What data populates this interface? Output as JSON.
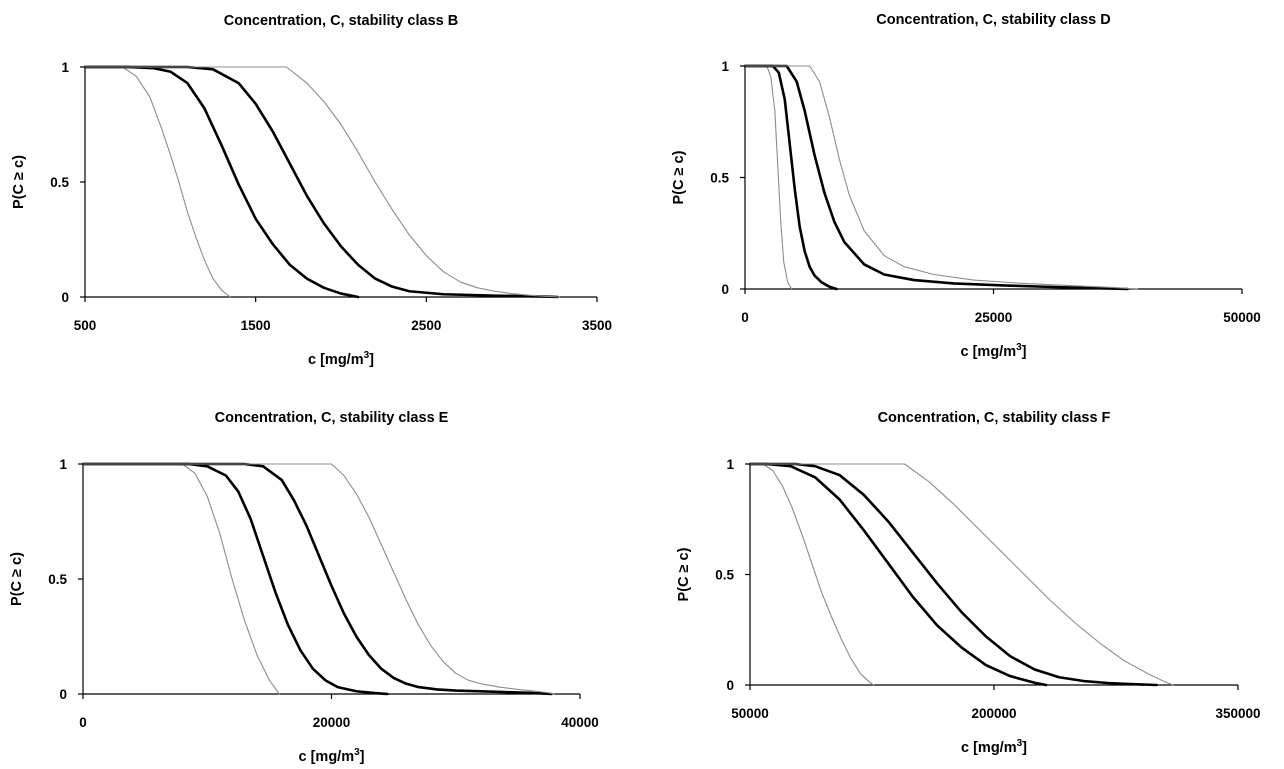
{
  "chart_data": [
    {
      "type": "line",
      "title": "Concentration, C, stability class B",
      "xlabel": "c [mg/m",
      "xlabel_sup": "3",
      "xlabel_end": "]",
      "ylabel": "P(C ≥ c)",
      "xlim": [
        500,
        3500
      ],
      "ylim": [
        0,
        1
      ],
      "xticks": [
        "500",
        "1500",
        "2500",
        "3500"
      ],
      "yticks": [
        "0",
        "0.5",
        "1"
      ],
      "colors": {
        "bounds": "#8c8c8c",
        "central": "#000000"
      },
      "series": [
        {
          "style": "bound",
          "points": [
            [
              500,
              1
            ],
            [
              720,
              1
            ],
            [
              800,
              0.96
            ],
            [
              880,
              0.87
            ],
            [
              950,
              0.73
            ],
            [
              1000,
              0.62
            ],
            [
              1050,
              0.5
            ],
            [
              1100,
              0.37
            ],
            [
              1150,
              0.26
            ],
            [
              1200,
              0.16
            ],
            [
              1250,
              0.08
            ],
            [
              1300,
              0.03
            ],
            [
              1350,
              0
            ]
          ]
        },
        {
          "style": "central",
          "points": [
            [
              500,
              1
            ],
            [
              750,
              1
            ],
            [
              900,
              0.995
            ],
            [
              1000,
              0.98
            ],
            [
              1100,
              0.93
            ],
            [
              1200,
              0.82
            ],
            [
              1300,
              0.66
            ],
            [
              1400,
              0.49
            ],
            [
              1500,
              0.34
            ],
            [
              1600,
              0.23
            ],
            [
              1700,
              0.14
            ],
            [
              1800,
              0.08
            ],
            [
              1900,
              0.04
            ],
            [
              2000,
              0.015
            ],
            [
              2100,
              0
            ]
          ]
        },
        {
          "style": "central",
          "points": [
            [
              500,
              1
            ],
            [
              1100,
              1
            ],
            [
              1250,
              0.99
            ],
            [
              1400,
              0.93
            ],
            [
              1500,
              0.84
            ],
            [
              1600,
              0.72
            ],
            [
              1700,
              0.58
            ],
            [
              1800,
              0.44
            ],
            [
              1900,
              0.32
            ],
            [
              2000,
              0.22
            ],
            [
              2100,
              0.14
            ],
            [
              2200,
              0.08
            ],
            [
              2300,
              0.045
            ],
            [
              2400,
              0.025
            ],
            [
              2600,
              0.012
            ],
            [
              2900,
              0.006
            ],
            [
              3200,
              0.002
            ],
            [
              3270,
              0
            ]
          ]
        },
        {
          "style": "bound",
          "points": [
            [
              500,
              1
            ],
            [
              1680,
              1
            ],
            [
              1800,
              0.93
            ],
            [
              1900,
              0.85
            ],
            [
              2000,
              0.75
            ],
            [
              2100,
              0.63
            ],
            [
              2200,
              0.5
            ],
            [
              2300,
              0.38
            ],
            [
              2400,
              0.27
            ],
            [
              2500,
              0.18
            ],
            [
              2600,
              0.11
            ],
            [
              2700,
              0.065
            ],
            [
              2800,
              0.04
            ],
            [
              2900,
              0.025
            ],
            [
              3000,
              0.015
            ],
            [
              3100,
              0.008
            ],
            [
              3200,
              0.003
            ],
            [
              3280,
              0
            ]
          ]
        }
      ]
    },
    {
      "type": "line",
      "title": "Concentration, C, stability class D",
      "xlabel": "c [mg/m",
      "xlabel_sup": "3",
      "xlabel_end": "]",
      "ylabel": "P(C ≥ c)",
      "xlim": [
        0,
        50000
      ],
      "ylim": [
        0,
        1
      ],
      "xticks": [
        "0",
        "25000",
        "50000"
      ],
      "yticks": [
        "0",
        "0.5",
        "1"
      ],
      "colors": {
        "bounds": "#8c8c8c",
        "central": "#000000"
      },
      "series": [
        {
          "style": "bound",
          "points": [
            [
              0,
              1
            ],
            [
              2200,
              1
            ],
            [
              2600,
              0.95
            ],
            [
              3000,
              0.8
            ],
            [
              3300,
              0.55
            ],
            [
              3600,
              0.3
            ],
            [
              3900,
              0.12
            ],
            [
              4300,
              0.03
            ],
            [
              4700,
              0
            ]
          ]
        },
        {
          "style": "central",
          "points": [
            [
              0,
              1
            ],
            [
              2800,
              1
            ],
            [
              3400,
              0.97
            ],
            [
              4000,
              0.85
            ],
            [
              4500,
              0.65
            ],
            [
              5000,
              0.45
            ],
            [
              5500,
              0.28
            ],
            [
              6000,
              0.17
            ],
            [
              6500,
              0.1
            ],
            [
              7000,
              0.06
            ],
            [
              7700,
              0.03
            ],
            [
              8500,
              0.01
            ],
            [
              9200,
              0
            ]
          ]
        },
        {
          "style": "central",
          "points": [
            [
              0,
              1
            ],
            [
              4200,
              1
            ],
            [
              5200,
              0.93
            ],
            [
              6000,
              0.8
            ],
            [
              7000,
              0.6
            ],
            [
              8000,
              0.43
            ],
            [
              9000,
              0.3
            ],
            [
              10000,
              0.21
            ],
            [
              12000,
              0.11
            ],
            [
              14000,
              0.065
            ],
            [
              17000,
              0.04
            ],
            [
              21000,
              0.025
            ],
            [
              26000,
              0.016
            ],
            [
              31000,
              0.009
            ],
            [
              36000,
              0.003
            ],
            [
              38500,
              0
            ]
          ]
        },
        {
          "style": "bound",
          "points": [
            [
              0,
              1
            ],
            [
              6500,
              1
            ],
            [
              7500,
              0.93
            ],
            [
              8500,
              0.77
            ],
            [
              9500,
              0.58
            ],
            [
              10500,
              0.42
            ],
            [
              12000,
              0.26
            ],
            [
              14000,
              0.15
            ],
            [
              16000,
              0.1
            ],
            [
              19000,
              0.065
            ],
            [
              23000,
              0.04
            ],
            [
              28000,
              0.025
            ],
            [
              33000,
              0.015
            ],
            [
              37000,
              0.007
            ],
            [
              39500,
              0
            ]
          ]
        }
      ]
    },
    {
      "type": "line",
      "title": "Concentration, C, stability class E",
      "xlabel": "c [mg/m",
      "xlabel_sup": "3",
      "xlabel_end": "]",
      "ylabel": "P(C ≥ c)",
      "xlim": [
        0,
        40000
      ],
      "ylim": [
        0,
        1
      ],
      "xticks": [
        "0",
        "20000",
        "40000"
      ],
      "yticks": [
        "0",
        "0.5",
        "1"
      ],
      "colors": {
        "bounds": "#8c8c8c",
        "central": "#000000"
      },
      "series": [
        {
          "style": "bound",
          "points": [
            [
              0,
              1
            ],
            [
              8000,
              1
            ],
            [
              9000,
              0.96
            ],
            [
              10000,
              0.86
            ],
            [
              11000,
              0.7
            ],
            [
              12000,
              0.5
            ],
            [
              13000,
              0.32
            ],
            [
              14000,
              0.17
            ],
            [
              15000,
              0.06
            ],
            [
              15800,
              0
            ]
          ]
        },
        {
          "style": "central",
          "points": [
            [
              0,
              1
            ],
            [
              8500,
              1
            ],
            [
              10000,
              0.99
            ],
            [
              11500,
              0.95
            ],
            [
              12500,
              0.88
            ],
            [
              13500,
              0.76
            ],
            [
              14500,
              0.6
            ],
            [
              15500,
              0.44
            ],
            [
              16500,
              0.3
            ],
            [
              17500,
              0.19
            ],
            [
              18500,
              0.11
            ],
            [
              19500,
              0.06
            ],
            [
              20500,
              0.03
            ],
            [
              22000,
              0.012
            ],
            [
              23500,
              0.004
            ],
            [
              24500,
              0
            ]
          ]
        },
        {
          "style": "central",
          "points": [
            [
              0,
              1
            ],
            [
              13000,
              1
            ],
            [
              14500,
              0.99
            ],
            [
              16000,
              0.93
            ],
            [
              17000,
              0.84
            ],
            [
              18000,
              0.73
            ],
            [
              19000,
              0.6
            ],
            [
              20000,
              0.47
            ],
            [
              21000,
              0.35
            ],
            [
              22000,
              0.25
            ],
            [
              23000,
              0.17
            ],
            [
              24000,
              0.11
            ],
            [
              25000,
              0.07
            ],
            [
              26000,
              0.045
            ],
            [
              27000,
              0.03
            ],
            [
              28500,
              0.02
            ],
            [
              30000,
              0.015
            ],
            [
              33000,
              0.01
            ],
            [
              36000,
              0.005
            ],
            [
              37700,
              0
            ]
          ]
        },
        {
          "style": "bound",
          "points": [
            [
              0,
              1
            ],
            [
              20000,
              1
            ],
            [
              21000,
              0.95
            ],
            [
              22000,
              0.87
            ],
            [
              23000,
              0.77
            ],
            [
              24000,
              0.65
            ],
            [
              25000,
              0.53
            ],
            [
              26000,
              0.41
            ],
            [
              27000,
              0.3
            ],
            [
              28000,
              0.21
            ],
            [
              29000,
              0.14
            ],
            [
              30000,
              0.09
            ],
            [
              31000,
              0.06
            ],
            [
              32000,
              0.045
            ],
            [
              33500,
              0.03
            ],
            [
              35000,
              0.02
            ],
            [
              36500,
              0.012
            ],
            [
              37500,
              0.005
            ],
            [
              37900,
              0
            ]
          ]
        }
      ]
    },
    {
      "type": "line",
      "title": "Concentration, C, stability class F",
      "xlabel": "c [mg/m",
      "xlabel_sup": "3",
      "xlabel_end": "]",
      "ylabel": "P(C ≥ c)",
      "xlim": [
        50000,
        350000
      ],
      "ylim": [
        0,
        1
      ],
      "xticks": [
        "50000",
        "200000",
        "350000"
      ],
      "yticks": [
        "0",
        "0.5",
        "1"
      ],
      "colors": {
        "bounds": "#8c8c8c",
        "central": "#000000"
      },
      "series": [
        {
          "style": "bound",
          "points": [
            [
              50000,
              1
            ],
            [
              58000,
              1
            ],
            [
              64000,
              0.97
            ],
            [
              70000,
              0.9
            ],
            [
              76000,
              0.8
            ],
            [
              82000,
              0.68
            ],
            [
              88000,
              0.55
            ],
            [
              94000,
              0.42
            ],
            [
              100000,
              0.31
            ],
            [
              106000,
              0.21
            ],
            [
              112000,
              0.12
            ],
            [
              118000,
              0.05
            ],
            [
              124000,
              0.01
            ],
            [
              126000,
              0
            ]
          ]
        },
        {
          "style": "central",
          "points": [
            [
              50000,
              1
            ],
            [
              60000,
              1
            ],
            [
              75000,
              0.99
            ],
            [
              90000,
              0.94
            ],
            [
              105000,
              0.84
            ],
            [
              120000,
              0.7
            ],
            [
              135000,
              0.55
            ],
            [
              150000,
              0.4
            ],
            [
              165000,
              0.27
            ],
            [
              180000,
              0.17
            ],
            [
              195000,
              0.09
            ],
            [
              210000,
              0.04
            ],
            [
              225000,
              0.01
            ],
            [
              232000,
              0
            ]
          ]
        },
        {
          "style": "central",
          "points": [
            [
              50000,
              1
            ],
            [
              78000,
              1
            ],
            [
              90000,
              0.99
            ],
            [
              105000,
              0.95
            ],
            [
              120000,
              0.86
            ],
            [
              135000,
              0.74
            ],
            [
              150000,
              0.6
            ],
            [
              165000,
              0.46
            ],
            [
              180000,
              0.33
            ],
            [
              195000,
              0.22
            ],
            [
              210000,
              0.13
            ],
            [
              225000,
              0.07
            ],
            [
              240000,
              0.035
            ],
            [
              255000,
              0.018
            ],
            [
              270000,
              0.009
            ],
            [
              285000,
              0.004
            ],
            [
              300000,
              0
            ]
          ]
        },
        {
          "style": "bound",
          "points": [
            [
              50000,
              1
            ],
            [
              145000,
              1
            ],
            [
              160000,
              0.92
            ],
            [
              175000,
              0.82
            ],
            [
              190000,
              0.71
            ],
            [
              205000,
              0.6
            ],
            [
              220000,
              0.49
            ],
            [
              235000,
              0.38
            ],
            [
              250000,
              0.28
            ],
            [
              265000,
              0.19
            ],
            [
              280000,
              0.11
            ],
            [
              295000,
              0.05
            ],
            [
              305000,
              0.015
            ],
            [
              310000,
              0
            ]
          ]
        }
      ]
    }
  ]
}
